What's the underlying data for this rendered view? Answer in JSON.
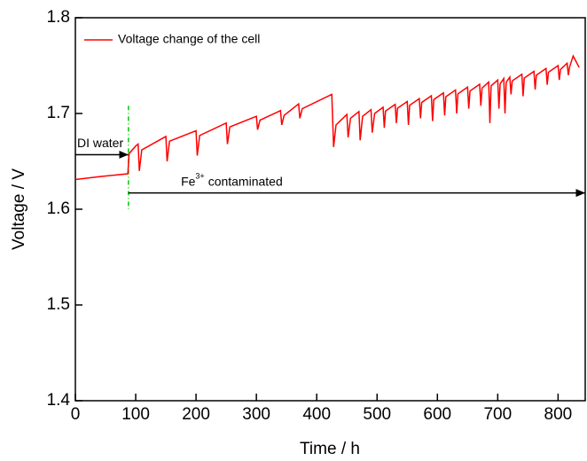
{
  "chart_data": {
    "type": "line",
    "x_label": "Time / h",
    "y_label": "Voltage / V",
    "xlim": [
      0,
      845
    ],
    "ylim": [
      1.4,
      1.8
    ],
    "xticks": [
      0,
      100,
      200,
      300,
      400,
      500,
      600,
      700,
      800
    ],
    "yticks": [
      1.4,
      1.5,
      1.6,
      1.7,
      1.8
    ],
    "legend": "upper left",
    "annotations": {
      "di_water": "DI water",
      "fe": "Fe",
      "fe_charge": "3+",
      "contaminated": "contaminated"
    },
    "series": [
      {
        "name": "Voltage change of the cell",
        "color": "#ff0000",
        "x": [
          0,
          40,
          87,
          89,
          100,
          104,
          106,
          110,
          150,
          152,
          156,
          200,
          202,
          206,
          250,
          252,
          256,
          300,
          302,
          306,
          340,
          342,
          346,
          370,
          372,
          376,
          425,
          428,
          432,
          450,
          452,
          456,
          470,
          472,
          476,
          490,
          492,
          496,
          510,
          512,
          514,
          530,
          532,
          534,
          550,
          552,
          554,
          570,
          572,
          574,
          590,
          592,
          594,
          610,
          612,
          614,
          630,
          632,
          634,
          650,
          652,
          654,
          670,
          672,
          674,
          685,
          687,
          689,
          700,
          702,
          704,
          710,
          712,
          714,
          720,
          722,
          724,
          740,
          742,
          744,
          760,
          762,
          764,
          780,
          782,
          784,
          800,
          802,
          804,
          815,
          817,
          819,
          825,
          835
        ],
        "values": [
          1.631,
          1.634,
          1.637,
          1.658,
          1.666,
          1.668,
          1.64,
          1.662,
          1.676,
          1.65,
          1.671,
          1.682,
          1.656,
          1.677,
          1.69,
          1.668,
          1.686,
          1.697,
          1.683,
          1.693,
          1.703,
          1.688,
          1.698,
          1.71,
          1.695,
          1.705,
          1.72,
          1.665,
          1.688,
          1.699,
          1.675,
          1.695,
          1.702,
          1.672,
          1.697,
          1.704,
          1.68,
          1.7,
          1.7065,
          1.685,
          1.7025,
          1.7095,
          1.69,
          1.7055,
          1.7125,
          1.688,
          1.7085,
          1.7155,
          1.695,
          1.7115,
          1.7185,
          1.692,
          1.7145,
          1.7215,
          1.698,
          1.7175,
          1.7245,
          1.7,
          1.7205,
          1.7275,
          1.705,
          1.7235,
          1.7305,
          1.708,
          1.7265,
          1.7328,
          1.69,
          1.7288,
          1.735,
          1.705,
          1.731,
          1.7365,
          1.7,
          1.7325,
          1.738,
          1.72,
          1.734,
          1.741,
          1.718,
          1.737,
          1.744,
          1.725,
          1.74,
          1.747,
          1.73,
          1.743,
          1.75,
          1.735,
          1.746,
          1.7525,
          1.74,
          1.7485,
          1.76,
          1.748
        ]
      }
    ]
  }
}
